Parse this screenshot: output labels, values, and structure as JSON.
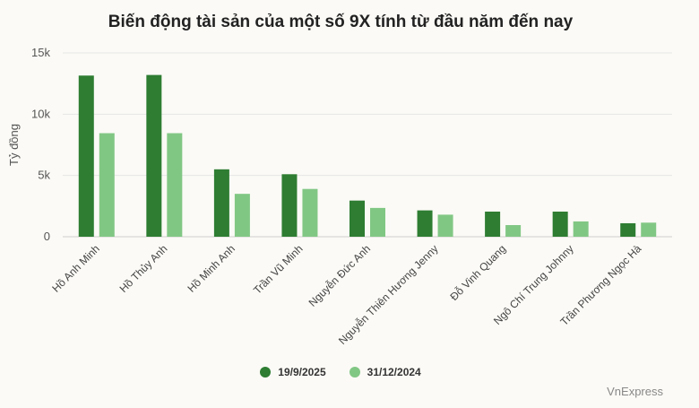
{
  "chart_data": {
    "type": "bar",
    "title": "Biến động tài sản của một số 9X tính từ đầu năm đến nay",
    "ylabel": "Tỷ đồng",
    "xlabel": "",
    "ylim": [
      0,
      15000
    ],
    "yticks": [
      0,
      5000,
      10000,
      15000
    ],
    "ytick_labels": [
      "0",
      "5k",
      "10k",
      "15k"
    ],
    "grid": true,
    "legend_position": "bottom",
    "categories": [
      "Hồ Anh Minh",
      "Hồ Thủy Anh",
      "Hồ Minh Anh",
      "Trần Vũ Minh",
      "Nguyễn Đức Anh",
      "Nguyễn Thiên Hương Jenny",
      "Đỗ Vinh Quang",
      "Ngô Chí Trung Johnny",
      "Trần Phương Ngọc Hà"
    ],
    "series": [
      {
        "name": "19/9/2025",
        "color": "#2e7d32",
        "values": [
          13150,
          13200,
          5500,
          5100,
          2950,
          2150,
          2050,
          2050,
          1100
        ]
      },
      {
        "name": "31/12/2024",
        "color": "#81c784",
        "values": [
          8450,
          8450,
          3500,
          3900,
          2350,
          1800,
          950,
          1250,
          1150
        ]
      }
    ]
  },
  "source": "VnExpress"
}
